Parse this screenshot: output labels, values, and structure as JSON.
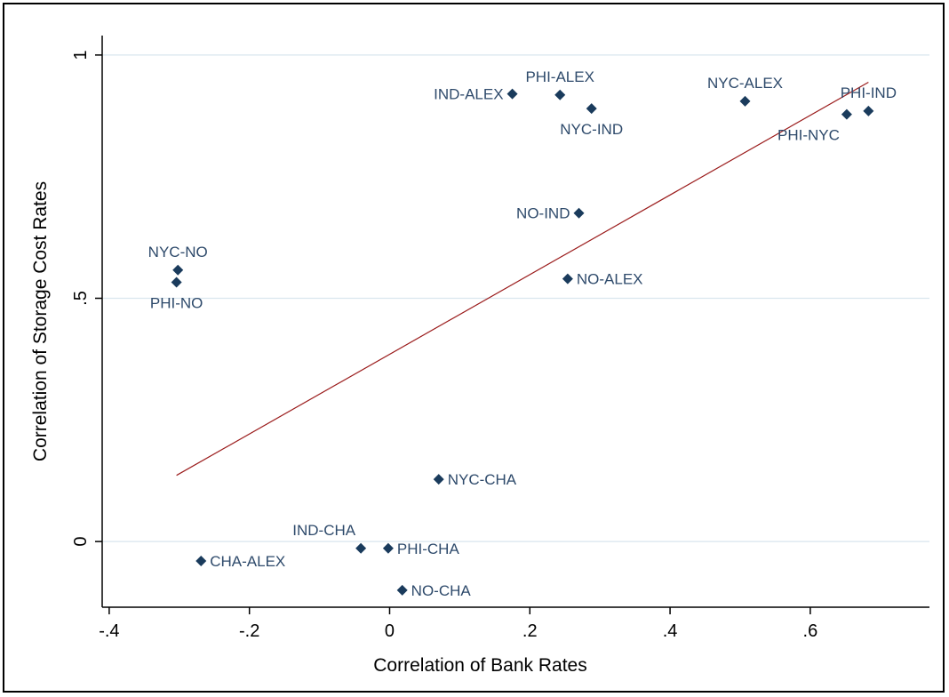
{
  "chart_data": {
    "type": "scatter",
    "title": "",
    "xlabel": "Correlation of Bank Rates",
    "ylabel": "Correlation of Storage Cost Rates",
    "xlim": [
      -0.41,
      0.77
    ],
    "ylim": [
      -0.135,
      1.04
    ],
    "x_ticks": [
      {
        "value": -0.4,
        "label": "-.4"
      },
      {
        "value": -0.2,
        "label": "-.2"
      },
      {
        "value": 0,
        "label": "0"
      },
      {
        "value": 0.2,
        "label": ".2"
      },
      {
        "value": 0.4,
        "label": ".4"
      },
      {
        "value": 0.6,
        "label": ".6"
      }
    ],
    "y_ticks": [
      {
        "value": 0,
        "label": "0"
      },
      {
        "value": 0.5,
        "label": ".5"
      },
      {
        "value": 1,
        "label": "1"
      }
    ],
    "y_grid": true,
    "colors": {
      "points": "#1a3b5c",
      "labels": "#2e4a6b",
      "fit_line": "#9b1c1c",
      "grid": "#d9e6ee"
    },
    "points": [
      {
        "label": "IND-ALEX",
        "x": 0.175,
        "y": 0.92,
        "pos": "left"
      },
      {
        "label": "PHI-ALEX",
        "x": 0.243,
        "y": 0.918,
        "pos": "above"
      },
      {
        "label": "NYC-IND",
        "x": 0.288,
        "y": 0.89,
        "pos": "below"
      },
      {
        "label": "NYC-ALEX",
        "x": 0.507,
        "y": 0.905,
        "pos": "above"
      },
      {
        "label": "PHI-NYC",
        "x": 0.652,
        "y": 0.878,
        "pos": "below-left"
      },
      {
        "label": "PHI-IND",
        "x": 0.683,
        "y": 0.885,
        "pos": "above"
      },
      {
        "label": "NO-IND",
        "x": 0.27,
        "y": 0.675,
        "pos": "left"
      },
      {
        "label": "NO-ALEX",
        "x": 0.254,
        "y": 0.54,
        "pos": "right"
      },
      {
        "label": "NYC-NO",
        "x": -0.302,
        "y": 0.558,
        "pos": "above"
      },
      {
        "label": "PHI-NO",
        "x": -0.304,
        "y": 0.533,
        "pos": "below"
      },
      {
        "label": "NYC-CHA",
        "x": 0.07,
        "y": 0.128,
        "pos": "right"
      },
      {
        "label": "IND-CHA",
        "x": -0.041,
        "y": -0.014,
        "pos": "above-left"
      },
      {
        "label": "PHI-CHA",
        "x": -0.002,
        "y": -0.014,
        "pos": "right"
      },
      {
        "label": "CHA-ALEX",
        "x": -0.269,
        "y": -0.04,
        "pos": "right"
      },
      {
        "label": "NO-CHA",
        "x": 0.018,
        "y": -0.1,
        "pos": "right"
      }
    ],
    "fit_line": {
      "x": [
        -0.304,
        0.683
      ],
      "y": [
        0.136,
        0.944
      ]
    }
  }
}
